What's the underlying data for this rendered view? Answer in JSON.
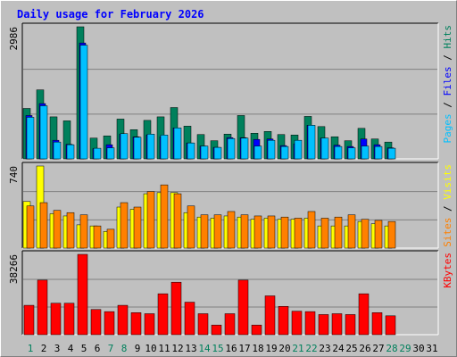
{
  "chart_data": {
    "type": "bar",
    "title": "Daily usage for February 2026",
    "colors": {
      "title": "#0000ff",
      "hits": "#00805c",
      "files": "#0000ff",
      "pages": "#00c0ff",
      "visits": "#ffff00",
      "sites": "#ff8000",
      "kbytes": "#ff0000",
      "weekday_label": "#000000",
      "weekend_label": "#00805c",
      "panel_bg": "#c0c0c0"
    },
    "x": {
      "days": [
        "1",
        "2",
        "3",
        "4",
        "5",
        "6",
        "7",
        "8",
        "9",
        "10",
        "11",
        "12",
        "13",
        "14",
        "15",
        "16",
        "17",
        "18",
        "19",
        "20",
        "21",
        "22",
        "23",
        "24",
        "25",
        "26",
        "27",
        "28",
        "29",
        "30",
        "31"
      ],
      "weekend_days": [
        "1",
        "7",
        "8",
        "14",
        "15",
        "21",
        "22",
        "28",
        "29"
      ],
      "days_with_data": 28
    },
    "panels": [
      {
        "id": "hits-files-pages",
        "ymax_label": "2986",
        "ylim": [
          0,
          2986
        ],
        "right_label_parts": [
          {
            "text": "Pages",
            "series": "pages"
          },
          {
            "text": " / ",
            "series": "separator"
          },
          {
            "text": "Files",
            "series": "files"
          },
          {
            "text": " / ",
            "series": "separator"
          },
          {
            "text": "Hits",
            "series": "hits"
          }
        ],
        "series": [
          {
            "name": "Hits",
            "key": "hits",
            "values": [
              1140,
              1560,
              950,
              860,
              2986,
              470,
              520,
              900,
              660,
              870,
              950,
              1160,
              740,
              550,
              410,
              560,
              980,
              580,
              620,
              550,
              540,
              960,
              730,
              500,
              410,
              690,
              450,
              380
            ]
          },
          {
            "name": "Files",
            "key": "files",
            "values": [
              980,
              1250,
              420,
              330,
              2620,
              230,
              320,
              560,
              500,
              540,
              500,
              700,
              360,
              290,
              260,
              480,
              480,
              440,
              450,
              300,
              340,
              760,
              470,
              310,
              280,
              450,
              320,
              250
            ]
          },
          {
            "name": "Pages",
            "key": "pages",
            "values": [
              940,
              1200,
              380,
              320,
              2570,
              240,
              250,
              570,
              490,
              560,
              540,
              700,
              360,
              290,
              260,
              460,
              470,
              290,
              420,
              280,
              420,
              760,
              470,
              280,
              250,
              290,
              280,
              240
            ]
          }
        ]
      },
      {
        "id": "visits-sites",
        "ymax_label": "740",
        "ylim": [
          0,
          740
        ],
        "right_label_parts": [
          {
            "text": "Sites",
            "series": "sites"
          },
          {
            "text": " / ",
            "series": "separator"
          },
          {
            "text": "Visits",
            "series": "visits"
          }
        ],
        "series": [
          {
            "name": "Visits",
            "key": "visits",
            "values": [
              420,
              740,
              310,
              290,
              210,
              200,
              150,
              370,
              350,
              490,
              500,
              500,
              320,
              280,
              270,
              290,
              280,
              260,
              270,
              260,
              260,
              270,
              200,
              200,
              200,
              240,
              220,
              200
            ]
          },
          {
            "name": "Sites",
            "key": "sites",
            "values": [
              380,
              410,
              340,
              320,
              300,
              200,
              170,
              410,
              370,
              510,
              570,
              490,
              380,
              300,
              300,
              330,
              300,
              290,
              290,
              280,
              270,
              330,
              270,
              280,
              300,
              260,
              250,
              240
            ]
          }
        ]
      },
      {
        "id": "kbytes",
        "ymax_label": "38266",
        "ylim": [
          0,
          38266
        ],
        "right_label_parts": [
          {
            "text": "KBytes",
            "series": "kbytes"
          }
        ],
        "series": [
          {
            "name": "KBytes",
            "key": "kbytes",
            "values": [
              14000,
              26000,
              15000,
              15000,
              38266,
              12000,
              11000,
              14000,
              10500,
              10000,
              19500,
              25000,
              15500,
              10000,
              4600,
              10000,
              26000,
              4600,
              18500,
              13500,
              11200,
              11000,
              9600,
              10000,
              9600,
              19500,
              10500,
              9000
            ]
          }
        ]
      }
    ]
  }
}
